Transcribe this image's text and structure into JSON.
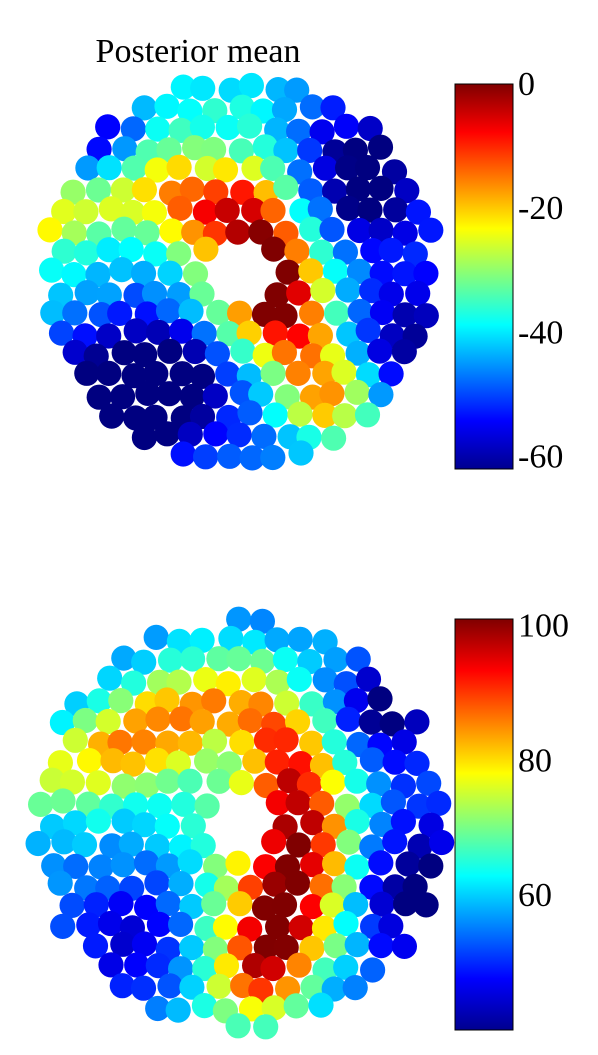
{
  "chart_data": [
    {
      "type": "scatter",
      "subtype": "spatial-heatmap",
      "title": "Posterior mean",
      "colormap": "jet",
      "colorbar": {
        "range": [
          -62,
          0
        ],
        "ticks": [
          0,
          -20,
          -40,
          -60
        ],
        "tick_labels": [
          "0",
          "-20",
          "-40",
          "-60"
        ]
      },
      "pattern": "low values (about -60) in the upper-left lobe and lower-left / lower-right edges; high values (about 0) along a hook-shaped band wrapping the central hole",
      "xlabel": "",
      "ylabel": ""
    },
    {
      "type": "scatter",
      "subtype": "spatial-heatmap",
      "title": "",
      "colormap": "jet",
      "colorbar": {
        "range": [
          40,
          101
        ],
        "ticks": [
          100,
          80,
          60
        ],
        "tick_labels": [
          "100",
          "80",
          "60"
        ]
      },
      "pattern": "high values (about 100) along a hook-shaped band around the central hole and upper-right region; low values (about 45) at the right and lower-right edges",
      "xlabel": "",
      "ylabel": ""
    }
  ]
}
